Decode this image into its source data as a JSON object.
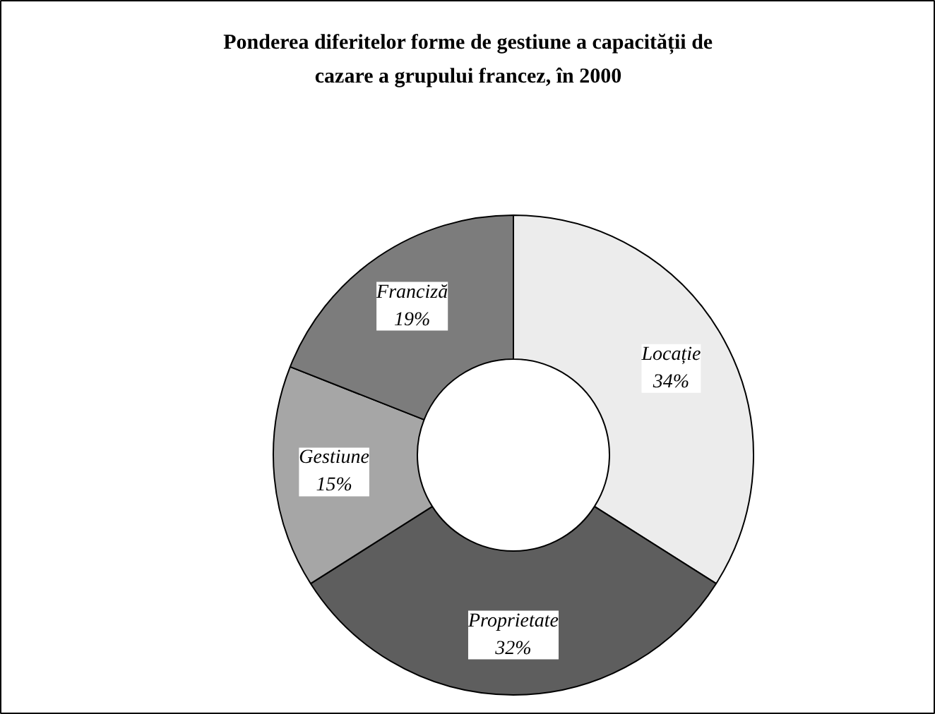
{
  "chart_data": {
    "type": "donut",
    "title": "Ponderea diferitelor forme de gestiune a capacității de\ncazare a grupului francez, în 2000",
    "categories": [
      "Locație",
      "Proprietate",
      "Gestiune",
      "Franciză"
    ],
    "values": [
      34,
      32,
      15,
      19
    ],
    "colors": [
      "#ececec",
      "#5e5e5e",
      "#a6a6a6",
      "#7c7c7c"
    ],
    "value_labels": [
      "34%",
      "32%",
      "15%",
      "19%"
    ]
  }
}
